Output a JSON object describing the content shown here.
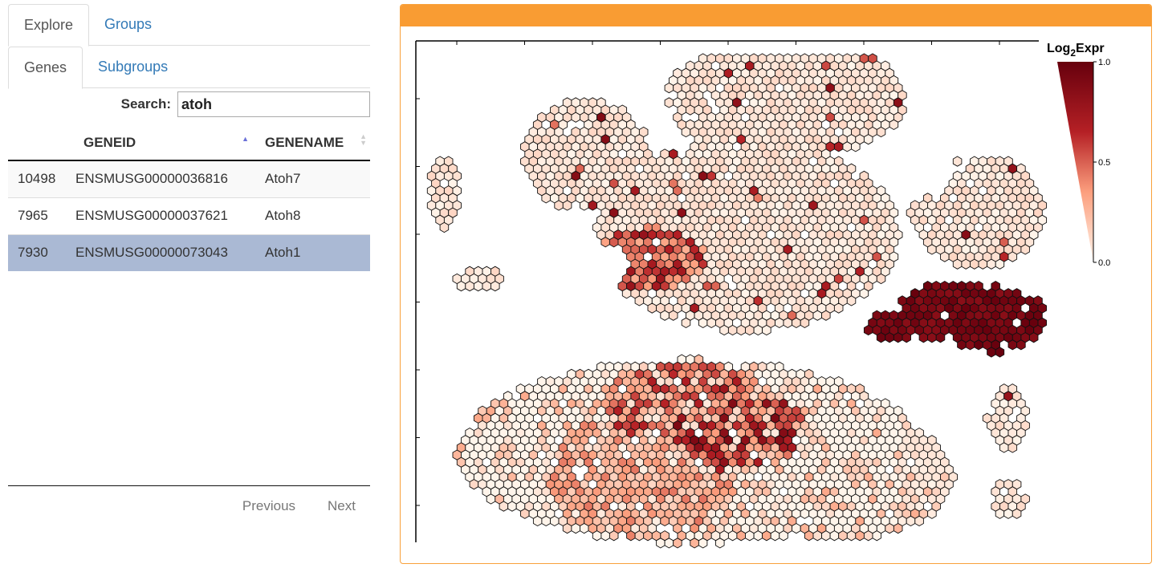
{
  "tabs": [
    {
      "label": "Explore",
      "active": true
    },
    {
      "label": "Groups",
      "active": false
    }
  ],
  "subtabs": [
    {
      "label": "Genes",
      "active": true
    },
    {
      "label": "Subgroups",
      "active": false
    }
  ],
  "search": {
    "label": "Search:",
    "value": "atoh"
  },
  "table": {
    "headers": [
      "",
      "GENEID",
      "GENENAME"
    ],
    "rows": [
      {
        "id": "10498",
        "geneid": "ENSMUSG00000036816",
        "genename": "Atoh7"
      },
      {
        "id": "7965",
        "geneid": "ENSMUSG00000037621",
        "genename": "Atoh8"
      },
      {
        "id": "7930",
        "geneid": "ENSMUSG00000073043",
        "genename": "Atoh1"
      }
    ],
    "selected_row": "7930",
    "sort": {
      "column": "GENEID",
      "direction": "ascending"
    }
  },
  "pager": {
    "previous": "Previous",
    "next": "Next"
  },
  "colors": {
    "accent": "#f99c33",
    "link": "#337ab7",
    "selected_row": "#aab9d4"
  },
  "chart_data": {
    "type": "heatmap",
    "title": "",
    "legend": {
      "title_base": "Log",
      "title_sub": "2",
      "title_suffix": "Expr",
      "ticks": [
        "1.0",
        "0.5",
        "0.0"
      ],
      "range": [
        0,
        1
      ],
      "colormap": [
        "#fff4ea",
        "#fc9f7e",
        "#b52025",
        "#67000d"
      ],
      "placement": "top-right"
    },
    "xlabel": "",
    "ylabel": "",
    "spot_shape": "hexagon",
    "regions": [
      {
        "name": "upper-tissue",
        "expression": 0.1
      },
      {
        "name": "right-lobe",
        "expression": 0.95
      },
      {
        "name": "lower-tissue",
        "expression": 0.45
      }
    ]
  }
}
